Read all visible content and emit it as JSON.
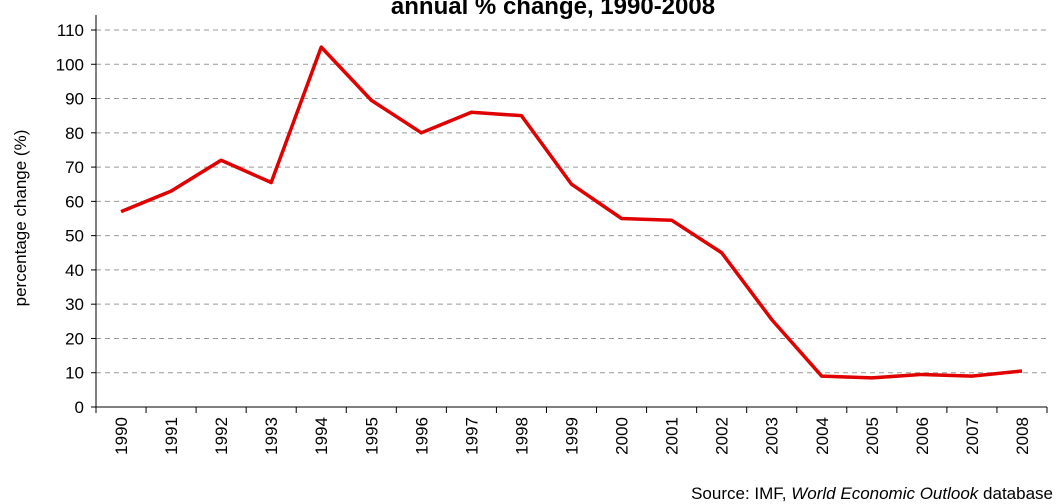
{
  "chart_data": {
    "type": "line",
    "title": "annual % change, 1990-2008",
    "y_axis_label": "percentage change (%)",
    "source": {
      "prefix": "Source: IMF, ",
      "italic": "World Economic Outlook",
      "suffix": " database"
    },
    "categories": [
      "1990",
      "1991",
      "1992",
      "1993",
      "1994",
      "1995",
      "1996",
      "1997",
      "1998",
      "1999",
      "2000",
      "2001",
      "2002",
      "2003",
      "2004",
      "2005",
      "2006",
      "2007",
      "2008"
    ],
    "series": [
      {
        "name": "annual % change",
        "color": "#e00000",
        "values": [
          57,
          63,
          72,
          65.5,
          105,
          89.5,
          80,
          86,
          85,
          65,
          55,
          54.5,
          45,
          25.5,
          9,
          8.5,
          9.5,
          9,
          10.5
        ]
      }
    ],
    "ylim": [
      0,
      110
    ],
    "yticks": [
      0,
      10,
      20,
      30,
      40,
      50,
      60,
      70,
      80,
      90,
      100,
      110
    ],
    "grid": true
  }
}
